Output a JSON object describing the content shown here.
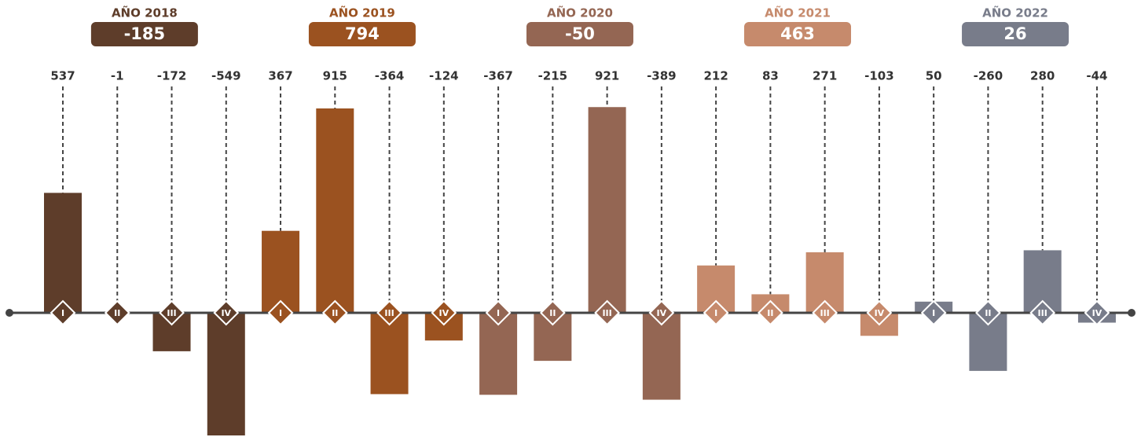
{
  "chart_data": {
    "type": "bar",
    "categories": [
      "I",
      "II",
      "III",
      "IV"
    ],
    "series": [
      {
        "name": "AÑO 2018",
        "total": -185,
        "color": "#5e3d2a",
        "values": [
          537,
          -1,
          -172,
          -549
        ]
      },
      {
        "name": "AÑO 2019",
        "total": 794,
        "color": "#9b5220",
        "values": [
          367,
          915,
          -364,
          -124
        ]
      },
      {
        "name": "AÑO 2020",
        "total": -50,
        "color": "#946653",
        "values": [
          -367,
          -215,
          921,
          -389
        ]
      },
      {
        "name": "AÑO 2021",
        "total": 463,
        "color": "#c68a6c",
        "values": [
          212,
          83,
          271,
          -103
        ]
      },
      {
        "name": "AÑO 2022",
        "total": 26,
        "color": "#787c8a",
        "values": [
          50,
          -260,
          280,
          -44
        ]
      }
    ]
  }
}
